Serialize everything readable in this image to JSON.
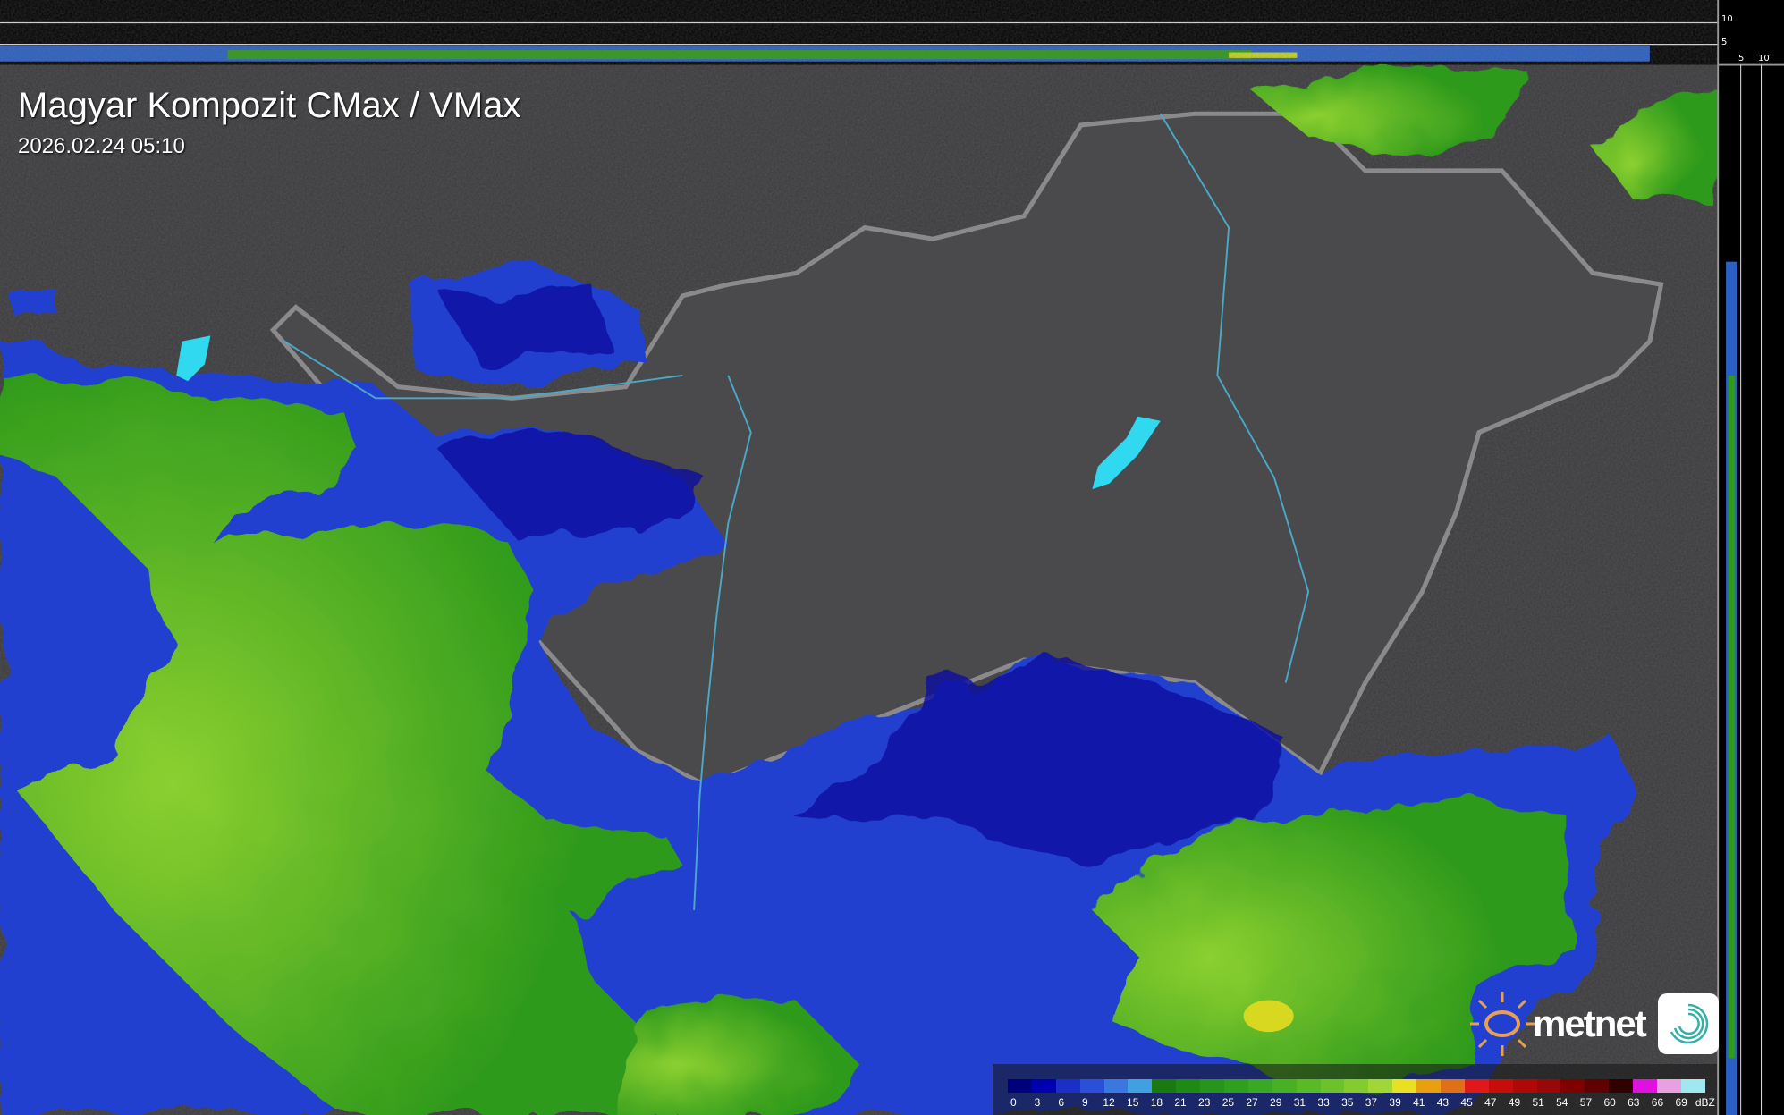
{
  "title": "Magyar Kompozit CMax / VMax",
  "timestamp": "2026.02.24 05:10",
  "profile_scale": {
    "vertical_ticks": [
      "10",
      "5"
    ],
    "horizontal_ticks": [
      "5",
      "10"
    ]
  },
  "legend": {
    "unit": "dBZ",
    "labels": [
      "0",
      "3",
      "6",
      "9",
      "12",
      "15",
      "18",
      "21",
      "23",
      "25",
      "27",
      "29",
      "31",
      "33",
      "35",
      "37",
      "39",
      "41",
      "43",
      "45",
      "47",
      "49",
      "51",
      "54",
      "57",
      "60",
      "63",
      "66",
      "69"
    ],
    "colors": [
      "#00007a",
      "#0000b0",
      "#1a2ec8",
      "#2a50d8",
      "#3a78e0",
      "#40a0e0",
      "#1a7a10",
      "#1f8a12",
      "#27951a",
      "#2f9f1e",
      "#3aa822",
      "#48b024",
      "#58ba26",
      "#6cc22a",
      "#84cc2e",
      "#a0d636",
      "#e8e020",
      "#e8a010",
      "#e07018",
      "#e01818",
      "#c80c0c",
      "#b00808",
      "#980808",
      "#800000",
      "#600000",
      "#300000",
      "#e010e0",
      "#e8a0e0",
      "#a0e8f0"
    ]
  },
  "logo": {
    "brand": "metnet"
  },
  "colors": {
    "background": "#3a3a3c",
    "border": "#8a8a8c",
    "precip_green": "#3aa822",
    "precip_blue": "#1a2ec8",
    "lake": "#30d8f0"
  }
}
